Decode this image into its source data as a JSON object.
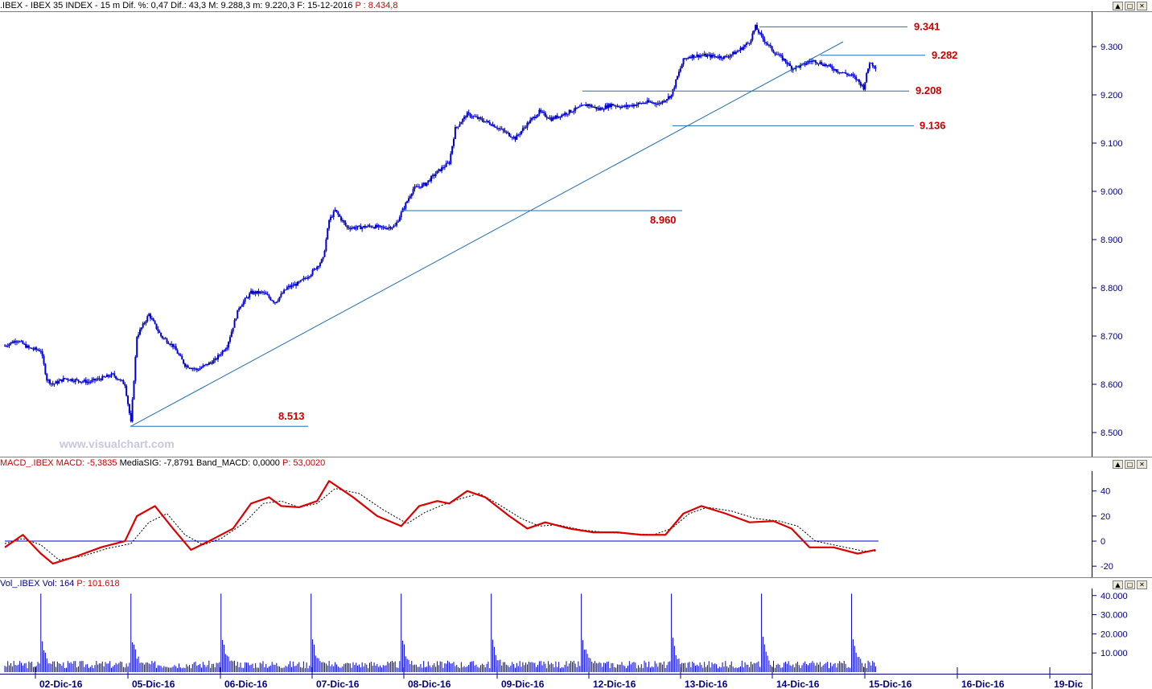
{
  "price_header": {
    "symbol": ".IBEX - IBEX 35 INDEX - ",
    "details": " 15 m  Dif. %: 0,47  Dif.: 43,3  M: 9.288,3  m: 9.220,3  F: 15-12-2016 ",
    "price_label": "P : 8.434,8"
  },
  "macd_header": {
    "name": "MACD_.IBEX  MACD: -5,3835",
    "signal": "MediaSIG: -7,8791",
    "band": "Band_MACD: 0,0000",
    "price_label": "P: 53,0020"
  },
  "volume_header": {
    "name": "Vol_.IBEX  Vol: 164",
    "price_label": "P: 101.618"
  },
  "watermark": "www.visualchart.com",
  "window_buttons": {
    "minimize": "▲",
    "restore": "□",
    "close": "✕"
  },
  "colors": {
    "candle": "#0000cc",
    "trendline": "#1f6fb5",
    "level_label": "#cc0000",
    "macd": "#dd0000",
    "signal": "#000000",
    "axis_text": "#000080",
    "volume": "#0000cc"
  },
  "chart_data": [
    {
      "type": "candlestick",
      "title": "IBEX 35 INDEX 15 m",
      "ylim": [
        8480,
        9360
      ],
      "y_ticks": [
        "8.500",
        "8.600",
        "8.700",
        "8.800",
        "8.900",
        "9.000",
        "9.100",
        "9.200",
        "9.300"
      ],
      "x_ticks": [
        "02-Dic-16",
        "05-Dic-16",
        "06-Dic-16",
        "07-Dic-16",
        "08-Dic-16",
        "09-Dic-16",
        "12-Dic-16",
        "13-Dic-16",
        "14-Dic-16",
        "15-Dic-16",
        "16-Dic-16",
        "19-Dic"
      ],
      "price_path": [
        [
          0,
          8680
        ],
        [
          2,
          8692
        ],
        [
          4,
          8675
        ],
        [
          6,
          8670
        ],
        [
          7,
          8610
        ],
        [
          8,
          8600
        ],
        [
          10,
          8612
        ],
        [
          12,
          8608
        ],
        [
          14,
          8605
        ],
        [
          16,
          8612
        ],
        [
          18,
          8620
        ],
        [
          20,
          8600
        ],
        [
          21,
          8520
        ],
        [
          22,
          8700
        ],
        [
          24,
          8745
        ],
        [
          26,
          8700
        ],
        [
          28,
          8680
        ],
        [
          30,
          8640
        ],
        [
          32,
          8630
        ],
        [
          35,
          8650
        ],
        [
          37,
          8680
        ],
        [
          39,
          8760
        ],
        [
          41,
          8790
        ],
        [
          43,
          8790
        ],
        [
          45,
          8770
        ],
        [
          47,
          8800
        ],
        [
          49,
          8810
        ],
        [
          51,
          8830
        ],
        [
          53,
          8860
        ],
        [
          54,
          8940
        ],
        [
          55,
          8960
        ],
        [
          57,
          8925
        ],
        [
          59,
          8925
        ],
        [
          61,
          8928
        ],
        [
          63,
          8924
        ],
        [
          65,
          8928
        ],
        [
          66,
          8955
        ],
        [
          68,
          9005
        ],
        [
          70,
          9015
        ],
        [
          72,
          9040
        ],
        [
          74,
          9060
        ],
        [
          75,
          9130
        ],
        [
          77,
          9160
        ],
        [
          79,
          9150
        ],
        [
          81,
          9140
        ],
        [
          83,
          9125
        ],
        [
          85,
          9110
        ],
        [
          87,
          9140
        ],
        [
          89,
          9165
        ],
        [
          91,
          9150
        ],
        [
          93,
          9160
        ],
        [
          95,
          9170
        ],
        [
          97,
          9180
        ],
        [
          99,
          9170
        ],
        [
          101,
          9180
        ],
        [
          103,
          9175
        ],
        [
          105,
          9180
        ],
        [
          107,
          9185
        ],
        [
          109,
          9182
        ],
        [
          111,
          9200
        ],
        [
          112,
          9238
        ],
        [
          113,
          9272
        ],
        [
          114,
          9280
        ],
        [
          116,
          9282
        ],
        [
          118,
          9280
        ],
        [
          120,
          9278
        ],
        [
          122,
          9290
        ],
        [
          124,
          9310
        ],
        [
          125,
          9341
        ],
        [
          126,
          9320
        ],
        [
          128,
          9290
        ],
        [
          130,
          9270
        ],
        [
          131,
          9255
        ],
        [
          133,
          9262
        ],
        [
          134,
          9270
        ],
        [
          135,
          9270
        ],
        [
          137,
          9260
        ],
        [
          139,
          9248
        ],
        [
          141,
          9240
        ],
        [
          142,
          9230
        ],
        [
          143,
          9215
        ],
        [
          144,
          9268
        ],
        [
          145,
          9258
        ]
      ],
      "levels": [
        {
          "label": "9.341",
          "value": 9341
        },
        {
          "label": "9.282",
          "value": 9282
        },
        {
          "label": "9.208",
          "value": 9208
        },
        {
          "label": "9.136",
          "value": 9136
        },
        {
          "label": "8.960",
          "value": 8960
        },
        {
          "label": "8.513",
          "value": 8513
        }
      ],
      "trendline": [
        [
          21,
          8513
        ],
        [
          139,
          9310
        ]
      ]
    },
    {
      "type": "line",
      "title": "MACD",
      "ylim": [
        -25,
        52
      ],
      "y_ticks": [
        "40",
        "20",
        "0",
        "-20"
      ],
      "series": [
        {
          "name": "MACD",
          "points": [
            [
              0,
              -5
            ],
            [
              3,
              5
            ],
            [
              6,
              -10
            ],
            [
              8,
              -18
            ],
            [
              12,
              -12
            ],
            [
              16,
              -5
            ],
            [
              20,
              0
            ],
            [
              22,
              20
            ],
            [
              25,
              28
            ],
            [
              28,
              10
            ],
            [
              31,
              -7
            ],
            [
              34,
              0
            ],
            [
              38,
              10
            ],
            [
              41,
              30
            ],
            [
              44,
              35
            ],
            [
              46,
              28
            ],
            [
              49,
              27
            ],
            [
              52,
              32
            ],
            [
              54,
              48
            ],
            [
              58,
              35
            ],
            [
              62,
              20
            ],
            [
              66,
              12
            ],
            [
              69,
              28
            ],
            [
              72,
              32
            ],
            [
              74,
              30
            ],
            [
              77,
              40
            ],
            [
              80,
              35
            ],
            [
              84,
              20
            ],
            [
              87,
              10
            ],
            [
              90,
              15
            ],
            [
              94,
              10
            ],
            [
              98,
              7
            ],
            [
              102,
              7
            ],
            [
              106,
              5
            ],
            [
              110,
              5
            ],
            [
              113,
              22
            ],
            [
              116,
              28
            ],
            [
              120,
              22
            ],
            [
              124,
              15
            ],
            [
              128,
              16
            ],
            [
              131,
              10
            ],
            [
              134,
              -5
            ],
            [
              138,
              -5
            ],
            [
              142,
              -10
            ],
            [
              145,
              -7
            ]
          ]
        },
        {
          "name": "MediaSIG",
          "points": [
            [
              0,
              -2
            ],
            [
              3,
              2
            ],
            [
              6,
              -3
            ],
            [
              9,
              -15
            ],
            [
              13,
              -12
            ],
            [
              17,
              -6
            ],
            [
              21,
              -2
            ],
            [
              24,
              15
            ],
            [
              27,
              22
            ],
            [
              30,
              5
            ],
            [
              33,
              -3
            ],
            [
              36,
              2
            ],
            [
              40,
              15
            ],
            [
              43,
              30
            ],
            [
              46,
              32
            ],
            [
              49,
              27
            ],
            [
              52,
              30
            ],
            [
              55,
              42
            ],
            [
              59,
              38
            ],
            [
              63,
              25
            ],
            [
              67,
              14
            ],
            [
              70,
              23
            ],
            [
              73,
              29
            ],
            [
              76,
              34
            ],
            [
              79,
              38
            ],
            [
              82,
              30
            ],
            [
              86,
              18
            ],
            [
              89,
              12
            ],
            [
              92,
              13
            ],
            [
              96,
              9
            ],
            [
              100,
              7
            ],
            [
              104,
              6
            ],
            [
              108,
              5
            ],
            [
              111,
              10
            ],
            [
              114,
              22
            ],
            [
              117,
              27
            ],
            [
              121,
              24
            ],
            [
              125,
              18
            ],
            [
              129,
              16
            ],
            [
              132,
              12
            ],
            [
              135,
              0
            ],
            [
              139,
              -4
            ],
            [
              143,
              -8
            ],
            [
              145,
              -8
            ]
          ]
        }
      ]
    },
    {
      "type": "bar",
      "title": "Volume",
      "ylim": [
        0,
        42000
      ],
      "y_ticks": [
        "40.000",
        "30.000",
        "20.000",
        "10.000"
      ],
      "spike_sessions": [
        6,
        21,
        36,
        51,
        66,
        81,
        96,
        111,
        126,
        141
      ],
      "spike_values": [
        41000,
        41000,
        41000,
        41000,
        41000,
        41000,
        41000,
        41000,
        41000,
        41000
      ]
    }
  ]
}
